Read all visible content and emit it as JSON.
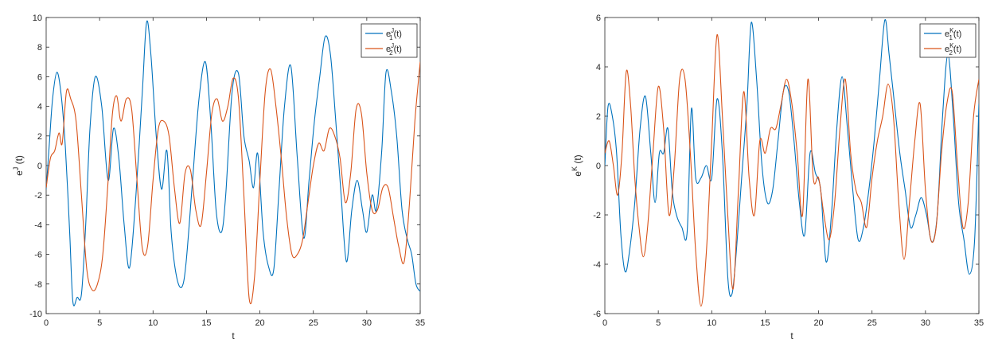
{
  "colors": {
    "series1": "#0072BD",
    "series2": "#D95319",
    "axis": "#262626",
    "background": "#ffffff"
  },
  "chart_data": [
    {
      "type": "line",
      "xlabel": "t",
      "ylabel_base": "e",
      "ylabel_sup": "J",
      "ylabel_tail": " (t)",
      "xlim": [
        0,
        35
      ],
      "ylim": [
        -10,
        10
      ],
      "xticks": [
        0,
        5,
        10,
        15,
        20,
        25,
        30,
        35
      ],
      "yticks": [
        -10,
        -8,
        -6,
        -4,
        -2,
        0,
        2,
        4,
        6,
        8,
        10
      ],
      "grid": false,
      "legend_position": "top-right",
      "series": [
        {
          "name": "e1J(t)",
          "label_base": "e",
          "label_sup": "J",
          "label_sub": "1",
          "label_tail": "(t)",
          "x": [
            0,
            0.3,
            0.6,
            1.0,
            1.4,
            1.8,
            2.2,
            2.5,
            2.9,
            3.3,
            3.7,
            4.1,
            4.6,
            5.2,
            5.8,
            6.3,
            6.8,
            7.3,
            7.8,
            8.4,
            9.0,
            9.4,
            9.8,
            10.3,
            10.8,
            11.3,
            11.7,
            12.2,
            12.7,
            13.1,
            13.7,
            14.3,
            14.9,
            15.4,
            15.9,
            16.4,
            16.8,
            17.4,
            18.0,
            18.5,
            19.0,
            19.4,
            19.8,
            20.3,
            20.8,
            21.3,
            21.8,
            22.3,
            22.9,
            23.5,
            24.1,
            24.6,
            25.1,
            25.6,
            26.1,
            26.6,
            27.1,
            27.6,
            28.1,
            28.6,
            29.1,
            29.6,
            30.0,
            30.5,
            30.9,
            31.4,
            31.8,
            32.3,
            32.8,
            33.3,
            33.8,
            34.2,
            34.6,
            35.0
          ],
          "y": [
            -1.6,
            1.5,
            4.5,
            6.3,
            4.8,
            1.2,
            -4.5,
            -9.2,
            -8.9,
            -8.7,
            -4.0,
            2.5,
            6.0,
            4.0,
            -1.0,
            2.5,
            0.5,
            -4.0,
            -6.9,
            -2.0,
            5.0,
            9.7,
            7.5,
            2.0,
            -1.6,
            1.0,
            -4.5,
            -7.5,
            -8.2,
            -6.5,
            -1.0,
            4.5,
            7.0,
            3.0,
            -3.0,
            -4.5,
            -2.0,
            5.0,
            6.2,
            2.0,
            0.3,
            -1.5,
            0.8,
            -4.5,
            -6.8,
            -7.0,
            -1.5,
            4.0,
            6.7,
            0.5,
            -4.9,
            -1.0,
            3.0,
            6.0,
            8.7,
            7.5,
            3.0,
            -2.0,
            -6.5,
            -3.0,
            -1.0,
            -3.0,
            -4.5,
            -2.0,
            -3.0,
            1.0,
            6.3,
            5.0,
            2.0,
            -3.0,
            -5.0,
            -6.0,
            -8.0,
            -8.5
          ]
        },
        {
          "name": "e2J(t)",
          "label_base": "e",
          "label_sup": "J",
          "label_sub": "2",
          "label_tail": "(t)",
          "x": [
            0,
            0.4,
            0.8,
            1.2,
            1.5,
            1.9,
            2.3,
            2.8,
            3.3,
            3.8,
            4.3,
            4.8,
            5.3,
            5.8,
            6.2,
            6.6,
            7.0,
            7.5,
            8.0,
            8.5,
            9.0,
            9.5,
            10.0,
            10.5,
            11.0,
            11.5,
            12.0,
            12.5,
            13.0,
            13.5,
            14.0,
            14.5,
            15.0,
            15.5,
            16.0,
            16.5,
            17.0,
            17.5,
            18.0,
            18.5,
            19.0,
            19.5,
            20.0,
            20.5,
            21.0,
            21.5,
            22.0,
            22.5,
            23.0,
            23.5,
            24.0,
            24.5,
            25.0,
            25.5,
            26.0,
            26.5,
            27.0,
            27.5,
            28.0,
            28.5,
            29.0,
            29.5,
            30.0,
            30.5,
            31.0,
            31.5,
            32.0,
            32.5,
            33.0,
            33.5,
            34.0,
            34.5,
            35.0
          ],
          "y": [
            -1.5,
            0.5,
            1.0,
            2.2,
            1.5,
            5.0,
            4.5,
            3.0,
            -2.0,
            -7.0,
            -8.4,
            -8.0,
            -6.0,
            -1.0,
            3.5,
            4.7,
            3.0,
            4.5,
            3.8,
            -1.0,
            -5.6,
            -5.4,
            -1.0,
            2.5,
            3.0,
            2.0,
            -1.5,
            -3.9,
            -0.5,
            -0.3,
            -3.0,
            -4.0,
            -0.5,
            3.5,
            4.5,
            3.0,
            4.0,
            5.9,
            4.5,
            -2.0,
            -9.0,
            -7.5,
            -1.0,
            5.0,
            6.5,
            4.0,
            0.5,
            -3.5,
            -6.0,
            -6.0,
            -5.0,
            -2.5,
            0.0,
            1.5,
            1.0,
            2.5,
            2.0,
            0.5,
            -2.5,
            -0.5,
            3.8,
            3.5,
            -0.5,
            -3.0,
            -3.0,
            -1.5,
            -1.5,
            -3.5,
            -5.5,
            -6.5,
            -2.5,
            3.0,
            7.0
          ]
        }
      ]
    },
    {
      "type": "line",
      "xlabel": "t",
      "ylabel_base": "e",
      "ylabel_sup": "K",
      "ylabel_tail": " (t)",
      "xlim": [
        0,
        35
      ],
      "ylim": [
        -6,
        6
      ],
      "xticks": [
        0,
        5,
        10,
        15,
        20,
        25,
        30,
        35
      ],
      "yticks": [
        -6,
        -4,
        -2,
        0,
        2,
        4,
        6
      ],
      "grid": false,
      "legend_position": "top-right",
      "series": [
        {
          "name": "e1K(t)",
          "label_base": "e",
          "label_sup": "K",
          "label_sub": "1",
          "label_tail": "(t)",
          "x": [
            0,
            0.3,
            0.7,
            1.1,
            1.5,
            1.9,
            2.3,
            2.8,
            3.3,
            3.8,
            4.3,
            4.7,
            5.1,
            5.5,
            5.9,
            6.3,
            6.7,
            7.2,
            7.7,
            8.1,
            8.5,
            9.0,
            9.5,
            10.0,
            10.5,
            11.0,
            11.5,
            11.9,
            12.3,
            12.8,
            13.3,
            13.7,
            14.2,
            14.7,
            15.2,
            15.7,
            16.2,
            16.7,
            17.2,
            17.7,
            18.2,
            18.7,
            19.2,
            19.7,
            20.2,
            20.7,
            21.2,
            21.7,
            22.2,
            22.7,
            23.2,
            23.7,
            24.2,
            24.7,
            25.2,
            25.7,
            26.2,
            26.6,
            27.1,
            27.6,
            28.1,
            28.6,
            29.1,
            29.6,
            30.1,
            30.6,
            31.1,
            31.6,
            32.1,
            32.6,
            33.1,
            33.6,
            34.1,
            34.6,
            35.0
          ],
          "y": [
            0.0,
            2.4,
            2.0,
            0.5,
            -2.8,
            -4.3,
            -3.5,
            -1.5,
            1.5,
            2.8,
            0.5,
            -1.5,
            0.5,
            0.5,
            1.5,
            -1.0,
            -2.0,
            -2.5,
            -2.7,
            2.3,
            -0.5,
            -0.5,
            0.0,
            -0.5,
            2.7,
            0.5,
            -4.5,
            -5.2,
            -3.5,
            -0.5,
            2.5,
            5.8,
            3.5,
            0.0,
            -1.5,
            -1.0,
            1.0,
            3.0,
            3.0,
            1.0,
            -1.5,
            -2.8,
            0.5,
            -0.3,
            -1.0,
            -3.9,
            -2.0,
            1.5,
            3.6,
            1.5,
            -1.0,
            -3.0,
            -2.5,
            -1.0,
            1.0,
            3.5,
            5.9,
            4.5,
            2.5,
            0.5,
            -1.0,
            -2.5,
            -2.0,
            -1.3,
            -2.0,
            -3.1,
            -2.0,
            2.0,
            4.5,
            2.0,
            -1.5,
            -3.0,
            -4.4,
            -3.0,
            2.5
          ]
        },
        {
          "name": "e2K(t)",
          "label_base": "e",
          "label_sup": "K",
          "label_sub": "2",
          "label_tail": "(t)",
          "x": [
            0,
            0.4,
            0.8,
            1.2,
            1.6,
            2.0,
            2.4,
            2.8,
            3.2,
            3.6,
            4.0,
            4.5,
            5.0,
            5.5,
            6.0,
            6.5,
            7.0,
            7.5,
            8.0,
            8.5,
            9.0,
            9.5,
            10.0,
            10.5,
            11.0,
            11.5,
            12.0,
            12.5,
            13.0,
            13.5,
            14.0,
            14.5,
            15.0,
            15.5,
            16.0,
            16.5,
            17.0,
            17.5,
            18.0,
            18.5,
            19.0,
            19.5,
            20.0,
            20.5,
            21.0,
            21.5,
            22.0,
            22.5,
            23.0,
            23.5,
            24.0,
            24.5,
            25.0,
            25.5,
            26.0,
            26.5,
            27.0,
            27.5,
            28.0,
            28.5,
            29.0,
            29.5,
            30.0,
            30.5,
            31.0,
            31.5,
            32.0,
            32.5,
            33.0,
            33.5,
            34.0,
            34.5,
            35.0
          ],
          "y": [
            0.5,
            1.0,
            0.0,
            -1.2,
            0.5,
            3.8,
            2.5,
            -0.5,
            -2.5,
            -3.7,
            -2.5,
            0.5,
            3.2,
            1.5,
            -2.0,
            0.0,
            3.5,
            3.5,
            0.5,
            -3.5,
            -5.7,
            -3.5,
            1.0,
            5.3,
            2.0,
            -2.0,
            -5.0,
            -1.0,
            3.0,
            -0.5,
            -2.0,
            1.0,
            0.5,
            1.5,
            1.5,
            2.5,
            3.5,
            2.5,
            0.5,
            -2.0,
            3.5,
            -0.5,
            -0.5,
            -2.0,
            -3.0,
            -1.5,
            1.5,
            3.5,
            0.5,
            -1.0,
            -1.5,
            -2.5,
            -0.5,
            1.0,
            2.0,
            3.3,
            2.0,
            -1.5,
            -3.8,
            -1.5,
            1.0,
            2.5,
            -1.0,
            -3.0,
            -2.5,
            0.5,
            2.5,
            3.0,
            0.0,
            -2.5,
            -1.5,
            2.0,
            3.5
          ]
        }
      ]
    }
  ]
}
